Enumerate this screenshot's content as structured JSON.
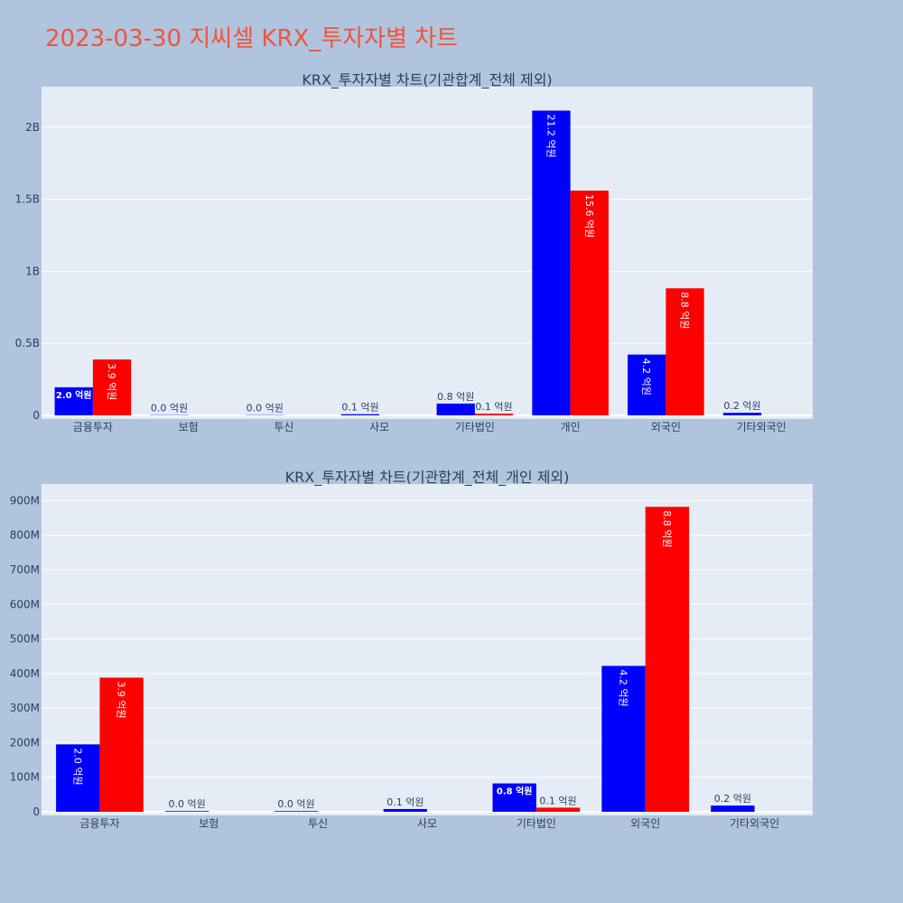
{
  "title": "2023-03-30 지씨셀 KRX_투자자별 차트",
  "colors": {
    "background": "#b0c4de",
    "plot_bg": "#e5ecf6",
    "buy": "#0000ff",
    "sell": "#ff0000",
    "title": "#ef553b"
  },
  "chart_data": [
    {
      "type": "bar",
      "title": "KRX_투자자별 차트(기관합계_전체 제외)",
      "categories": [
        "금융투자",
        "보험",
        "투신",
        "사모",
        "기타법인",
        "개인",
        "외국인",
        "기타외국인"
      ],
      "ylim": [
        0,
        2250000000
      ],
      "yticks": [
        0,
        500000000,
        1000000000,
        1500000000,
        2000000000
      ],
      "ytick_labels": [
        "0",
        "0.5B",
        "1B",
        "1.5B",
        "2B"
      ],
      "grid": true,
      "series": [
        {
          "color": "#0000ff",
          "values": [
            195000000,
            2000000,
            2000000,
            8000000,
            82000000,
            2115000000,
            422000000,
            18000000
          ],
          "labels": [
            "2.0 억원",
            "0.0 억원",
            "0.0 억원",
            "0.1 억원",
            "0.8 억원",
            "21.2 억원",
            "4.2 억원",
            "0.2 억원"
          ]
        },
        {
          "color": "#ff0000",
          "values": [
            388000000,
            0,
            0,
            0,
            12000000,
            1560000000,
            882000000,
            0
          ],
          "labels": [
            "3.9 억원",
            "",
            "",
            "",
            "0.1 억원",
            "15.6 억원",
            "8.8 억원",
            ""
          ]
        }
      ]
    },
    {
      "type": "bar",
      "title": "KRX_투자자별 차트(기관합계_전체_개인 제외)",
      "categories": [
        "금융투자",
        "보험",
        "투신",
        "사모",
        "기타법인",
        "외국인",
        "기타외국인"
      ],
      "ylim": [
        0,
        935000000
      ],
      "yticks": [
        0,
        100000000,
        200000000,
        300000000,
        400000000,
        500000000,
        600000000,
        700000000,
        800000000,
        900000000
      ],
      "ytick_labels": [
        "0",
        "100M",
        "200M",
        "300M",
        "400M",
        "500M",
        "600M",
        "700M",
        "800M",
        "900M"
      ],
      "grid": true,
      "series": [
        {
          "color": "#0000ff",
          "values": [
            195000000,
            2000000,
            2000000,
            8000000,
            82000000,
            422000000,
            18000000
          ],
          "labels": [
            "2.0 억원",
            "0.0 억원",
            "0.0 억원",
            "0.1 억원",
            "0.8 억원",
            "4.2 억원",
            "0.2 억원"
          ]
        },
        {
          "color": "#ff0000",
          "values": [
            388000000,
            0,
            0,
            0,
            12000000,
            882000000,
            0
          ],
          "labels": [
            "3.9 억원",
            "",
            "",
            "",
            "0.1 억원",
            "8.8 억원",
            ""
          ]
        }
      ]
    }
  ]
}
